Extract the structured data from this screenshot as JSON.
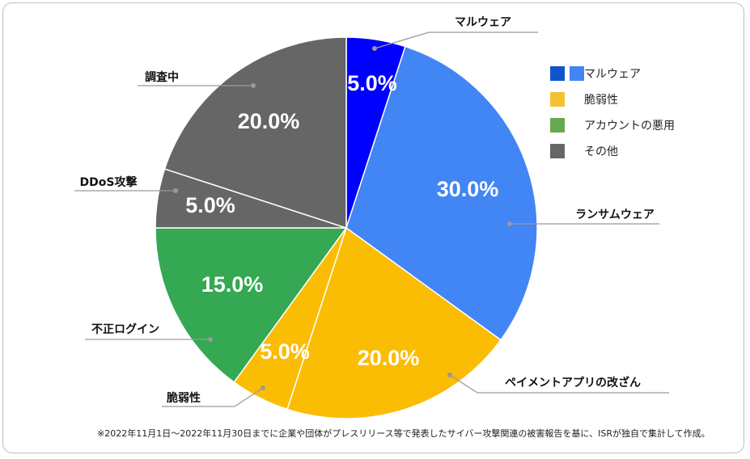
{
  "chart_data": {
    "type": "pie",
    "slices": [
      {
        "label": "マルウェア",
        "value": 5.0,
        "display": "5.0%",
        "color": "#0000ff"
      },
      {
        "label": "ランサムウェア",
        "value": 30.0,
        "display": "30.0%",
        "color": "#4285f4"
      },
      {
        "label": "ペイメントアプリの改ざん",
        "value": 20.0,
        "display": "20.0%",
        "color": "#fbbc04"
      },
      {
        "label": "脆弱性",
        "value": 5.0,
        "display": "5.0%",
        "color": "#fbbc04"
      },
      {
        "label": "不正ログイン",
        "value": 15.0,
        "display": "15.0%",
        "color": "#34a853"
      },
      {
        "label": "DDoS攻撃",
        "value": 5.0,
        "display": "5.0%",
        "color": "#666666"
      },
      {
        "label": "調査中",
        "value": 20.0,
        "display": "20.0%",
        "color": "#666666"
      }
    ]
  },
  "legend": {
    "items": [
      {
        "label": "マルウェア",
        "colors": [
          "#1155cc",
          "#4285f4"
        ]
      },
      {
        "label": "脆弱性",
        "colors": [
          "#f1c232"
        ]
      },
      {
        "label": "アカウントの悪用",
        "colors": [
          "#6aa84f"
        ]
      },
      {
        "label": "その他",
        "colors": [
          "#666666"
        ]
      }
    ]
  },
  "footnote": "※2022年11月1日～2022年11月30日までに企業や団体がプレスリリース等で発表したサイバー攻撃関連の被害報告を基に、ISRが独自で集計して作成。"
}
